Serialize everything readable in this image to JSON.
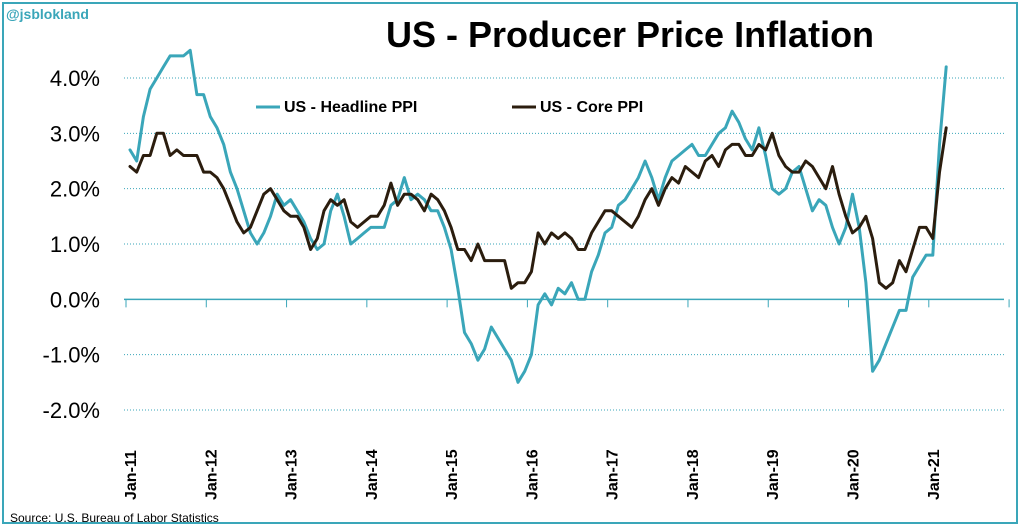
{
  "header": {
    "watermark": "@jsblokland",
    "title": "US - Producer Price Inflation"
  },
  "footer": {
    "source": "Source: U.S. Bureau of Labor Statistics"
  },
  "chart_data": {
    "type": "line",
    "title": "US - Producer Price Inflation",
    "xlabel": "",
    "ylabel": "",
    "ylim": [
      -2.0,
      4.0
    ],
    "y_ticks": [
      "4.0%",
      "3.0%",
      "2.0%",
      "1.0%",
      "0.0%",
      "-1.0%",
      "-2.0%"
    ],
    "y_tick_values": [
      4,
      3,
      2,
      1,
      0,
      -1,
      -2
    ],
    "x_ticks": [
      "Jan-11",
      "Jan-12",
      "Jan-13",
      "Jan-14",
      "Jan-15",
      "Jan-16",
      "Jan-17",
      "Jan-18",
      "Jan-19",
      "Jan-20",
      "Jan-21"
    ],
    "grid": "horizontal dotted",
    "legend_position": "top-center",
    "series": [
      {
        "name": "US - Headline PPI",
        "color": "#3aa6b9",
        "points": [
          [
            "Jan-11",
            2.7
          ],
          [
            "Feb-11",
            2.5
          ],
          [
            "Mar-11",
            3.3
          ],
          [
            "Apr-11",
            3.8
          ],
          [
            "May-11",
            4.0
          ],
          [
            "Jun-11",
            4.2
          ],
          [
            "Jul-11",
            4.4
          ],
          [
            "Aug-11",
            4.4
          ],
          [
            "Sep-11",
            4.4
          ],
          [
            "Oct-11",
            4.5
          ],
          [
            "Nov-11",
            3.7
          ],
          [
            "Dec-11",
            3.7
          ],
          [
            "Jan-12",
            3.3
          ],
          [
            "Feb-12",
            3.1
          ],
          [
            "Mar-12",
            2.8
          ],
          [
            "Apr-12",
            2.3
          ],
          [
            "May-12",
            2.0
          ],
          [
            "Jun-12",
            1.6
          ],
          [
            "Jul-12",
            1.2
          ],
          [
            "Aug-12",
            1.0
          ],
          [
            "Sep-12",
            1.2
          ],
          [
            "Oct-12",
            1.5
          ],
          [
            "Nov-12",
            1.9
          ],
          [
            "Dec-12",
            1.7
          ],
          [
            "Jan-13",
            1.8
          ],
          [
            "Feb-13",
            1.6
          ],
          [
            "Mar-13",
            1.4
          ],
          [
            "Apr-13",
            1.1
          ],
          [
            "May-13",
            0.9
          ],
          [
            "Jun-13",
            1.0
          ],
          [
            "Jul-13",
            1.6
          ],
          [
            "Aug-13",
            1.9
          ],
          [
            "Sep-13",
            1.5
          ],
          [
            "Oct-13",
            1.0
          ],
          [
            "Nov-13",
            1.1
          ],
          [
            "Dec-13",
            1.2
          ],
          [
            "Jan-14",
            1.3
          ],
          [
            "Feb-14",
            1.3
          ],
          [
            "Mar-14",
            1.3
          ],
          [
            "Apr-14",
            1.7
          ],
          [
            "May-14",
            1.8
          ],
          [
            "Jun-14",
            2.2
          ],
          [
            "Jul-14",
            1.8
          ],
          [
            "Aug-14",
            1.9
          ],
          [
            "Sep-14",
            1.8
          ],
          [
            "Oct-14",
            1.6
          ],
          [
            "Nov-14",
            1.6
          ],
          [
            "Dec-14",
            1.3
          ],
          [
            "Jan-15",
            0.9
          ],
          [
            "Feb-15",
            0.2
          ],
          [
            "Mar-15",
            -0.6
          ],
          [
            "Apr-15",
            -0.8
          ],
          [
            "May-15",
            -1.1
          ],
          [
            "Jun-15",
            -0.9
          ],
          [
            "Jul-15",
            -0.5
          ],
          [
            "Aug-15",
            -0.7
          ],
          [
            "Sep-15",
            -0.9
          ],
          [
            "Oct-15",
            -1.1
          ],
          [
            "Nov-15",
            -1.5
          ],
          [
            "Dec-15",
            -1.3
          ],
          [
            "Jan-16",
            -1.0
          ],
          [
            "Feb-16",
            -0.1
          ],
          [
            "Mar-16",
            0.1
          ],
          [
            "Apr-16",
            -0.1
          ],
          [
            "May-16",
            0.2
          ],
          [
            "Jun-16",
            0.1
          ],
          [
            "Jul-16",
            0.3
          ],
          [
            "Aug-16",
            0.0
          ],
          [
            "Sep-16",
            0.0
          ],
          [
            "Oct-16",
            0.5
          ],
          [
            "Nov-16",
            0.8
          ],
          [
            "Dec-16",
            1.2
          ],
          [
            "Jan-17",
            1.3
          ],
          [
            "Feb-17",
            1.7
          ],
          [
            "Mar-17",
            1.8
          ],
          [
            "Apr-17",
            2.0
          ],
          [
            "May-17",
            2.2
          ],
          [
            "Jun-17",
            2.5
          ],
          [
            "Jul-17",
            2.2
          ],
          [
            "Aug-17",
            1.8
          ],
          [
            "Sep-17",
            2.2
          ],
          [
            "Oct-17",
            2.5
          ],
          [
            "Nov-17",
            2.6
          ],
          [
            "Dec-17",
            2.7
          ],
          [
            "Jan-18",
            2.8
          ],
          [
            "Feb-18",
            2.6
          ],
          [
            "Mar-18",
            2.6
          ],
          [
            "Apr-18",
            2.8
          ],
          [
            "May-18",
            3.0
          ],
          [
            "Jun-18",
            3.1
          ],
          [
            "Jul-18",
            3.4
          ],
          [
            "Aug-18",
            3.2
          ],
          [
            "Sep-18",
            2.9
          ],
          [
            "Oct-18",
            2.7
          ],
          [
            "Nov-18",
            3.1
          ],
          [
            "Dec-18",
            2.6
          ],
          [
            "Jan-19",
            2.0
          ],
          [
            "Feb-19",
            1.9
          ],
          [
            "Mar-19",
            2.0
          ],
          [
            "Apr-19",
            2.3
          ],
          [
            "May-19",
            2.4
          ],
          [
            "Jun-19",
            2.0
          ],
          [
            "Jul-19",
            1.6
          ],
          [
            "Aug-19",
            1.8
          ],
          [
            "Sep-19",
            1.7
          ],
          [
            "Oct-19",
            1.3
          ],
          [
            "Nov-19",
            1.0
          ],
          [
            "Dec-19",
            1.3
          ],
          [
            "Jan-20",
            1.9
          ],
          [
            "Feb-20",
            1.3
          ],
          [
            "Mar-20",
            0.3
          ],
          [
            "Apr-20",
            -1.3
          ],
          [
            "May-20",
            -1.1
          ],
          [
            "Jun-20",
            -0.8
          ],
          [
            "Jul-20",
            -0.5
          ],
          [
            "Aug-20",
            -0.2
          ],
          [
            "Sep-20",
            -0.2
          ],
          [
            "Oct-20",
            0.4
          ],
          [
            "Nov-20",
            0.6
          ],
          [
            "Dec-20",
            0.8
          ],
          [
            "Jan-21",
            0.8
          ],
          [
            "Feb-21",
            2.8
          ],
          [
            "Mar-21",
            4.2
          ]
        ]
      },
      {
        "name": "US - Core PPI",
        "color": "#2b1d0e",
        "points": [
          [
            "Jan-11",
            2.4
          ],
          [
            "Feb-11",
            2.3
          ],
          [
            "Mar-11",
            2.6
          ],
          [
            "Apr-11",
            2.6
          ],
          [
            "May-11",
            3.0
          ],
          [
            "Jun-11",
            3.0
          ],
          [
            "Jul-11",
            2.6
          ],
          [
            "Aug-11",
            2.7
          ],
          [
            "Sep-11",
            2.6
          ],
          [
            "Oct-11",
            2.6
          ],
          [
            "Nov-11",
            2.6
          ],
          [
            "Dec-11",
            2.3
          ],
          [
            "Jan-12",
            2.3
          ],
          [
            "Feb-12",
            2.2
          ],
          [
            "Mar-12",
            2.0
          ],
          [
            "Apr-12",
            1.7
          ],
          [
            "May-12",
            1.4
          ],
          [
            "Jun-12",
            1.2
          ],
          [
            "Jul-12",
            1.3
          ],
          [
            "Aug-12",
            1.6
          ],
          [
            "Sep-12",
            1.9
          ],
          [
            "Oct-12",
            2.0
          ],
          [
            "Nov-12",
            1.8
          ],
          [
            "Dec-12",
            1.6
          ],
          [
            "Jan-13",
            1.5
          ],
          [
            "Feb-13",
            1.5
          ],
          [
            "Mar-13",
            1.3
          ],
          [
            "Apr-13",
            0.9
          ],
          [
            "May-13",
            1.1
          ],
          [
            "Jun-13",
            1.6
          ],
          [
            "Jul-13",
            1.8
          ],
          [
            "Aug-13",
            1.7
          ],
          [
            "Sep-13",
            1.8
          ],
          [
            "Oct-13",
            1.4
          ],
          [
            "Nov-13",
            1.3
          ],
          [
            "Dec-13",
            1.4
          ],
          [
            "Jan-14",
            1.5
          ],
          [
            "Feb-14",
            1.5
          ],
          [
            "Mar-14",
            1.7
          ],
          [
            "Apr-14",
            2.1
          ],
          [
            "May-14",
            1.7
          ],
          [
            "Jun-14",
            1.9
          ],
          [
            "Jul-14",
            1.9
          ],
          [
            "Aug-14",
            1.8
          ],
          [
            "Sep-14",
            1.6
          ],
          [
            "Oct-14",
            1.9
          ],
          [
            "Nov-14",
            1.8
          ],
          [
            "Dec-14",
            1.6
          ],
          [
            "Jan-15",
            1.3
          ],
          [
            "Feb-15",
            0.9
          ],
          [
            "Mar-15",
            0.9
          ],
          [
            "Apr-15",
            0.7
          ],
          [
            "May-15",
            1.0
          ],
          [
            "Jun-15",
            0.7
          ],
          [
            "Jul-15",
            0.7
          ],
          [
            "Aug-15",
            0.7
          ],
          [
            "Sep-15",
            0.7
          ],
          [
            "Oct-15",
            0.2
          ],
          [
            "Nov-15",
            0.3
          ],
          [
            "Dec-15",
            0.3
          ],
          [
            "Jan-16",
            0.5
          ],
          [
            "Feb-16",
            1.2
          ],
          [
            "Mar-16",
            1.0
          ],
          [
            "Apr-16",
            1.2
          ],
          [
            "May-16",
            1.1
          ],
          [
            "Jun-16",
            1.2
          ],
          [
            "Jul-16",
            1.1
          ],
          [
            "Aug-16",
            0.9
          ],
          [
            "Sep-16",
            0.9
          ],
          [
            "Oct-16",
            1.2
          ],
          [
            "Nov-16",
            1.4
          ],
          [
            "Dec-16",
            1.6
          ],
          [
            "Jan-17",
            1.6
          ],
          [
            "Feb-17",
            1.5
          ],
          [
            "Mar-17",
            1.4
          ],
          [
            "Apr-17",
            1.3
          ],
          [
            "May-17",
            1.5
          ],
          [
            "Jun-17",
            1.8
          ],
          [
            "Jul-17",
            2.0
          ],
          [
            "Aug-17",
            1.7
          ],
          [
            "Sep-17",
            2.0
          ],
          [
            "Oct-17",
            2.2
          ],
          [
            "Nov-17",
            2.1
          ],
          [
            "Dec-17",
            2.4
          ],
          [
            "Jan-18",
            2.3
          ],
          [
            "Feb-18",
            2.2
          ],
          [
            "Mar-18",
            2.5
          ],
          [
            "Apr-18",
            2.6
          ],
          [
            "May-18",
            2.4
          ],
          [
            "Jun-18",
            2.7
          ],
          [
            "Jul-18",
            2.8
          ],
          [
            "Aug-18",
            2.8
          ],
          [
            "Sep-18",
            2.6
          ],
          [
            "Oct-18",
            2.6
          ],
          [
            "Nov-18",
            2.8
          ],
          [
            "Dec-18",
            2.7
          ],
          [
            "Jan-19",
            3.0
          ],
          [
            "Feb-19",
            2.6
          ],
          [
            "Mar-19",
            2.4
          ],
          [
            "Apr-19",
            2.3
          ],
          [
            "May-19",
            2.3
          ],
          [
            "Jun-19",
            2.5
          ],
          [
            "Jul-19",
            2.4
          ],
          [
            "Aug-19",
            2.2
          ],
          [
            "Sep-19",
            2.0
          ],
          [
            "Oct-19",
            2.4
          ],
          [
            "Nov-19",
            1.9
          ],
          [
            "Dec-19",
            1.5
          ],
          [
            "Jan-20",
            1.2
          ],
          [
            "Feb-20",
            1.3
          ],
          [
            "Mar-20",
            1.5
          ],
          [
            "Apr-20",
            1.1
          ],
          [
            "May-20",
            0.3
          ],
          [
            "Jun-20",
            0.2
          ],
          [
            "Jul-20",
            0.3
          ],
          [
            "Aug-20",
            0.7
          ],
          [
            "Sep-20",
            0.5
          ],
          [
            "Oct-20",
            0.9
          ],
          [
            "Nov-20",
            1.3
          ],
          [
            "Dec-20",
            1.3
          ],
          [
            "Jan-21",
            1.1
          ],
          [
            "Feb-21",
            2.3
          ],
          [
            "Mar-21",
            3.1
          ]
        ]
      }
    ]
  }
}
